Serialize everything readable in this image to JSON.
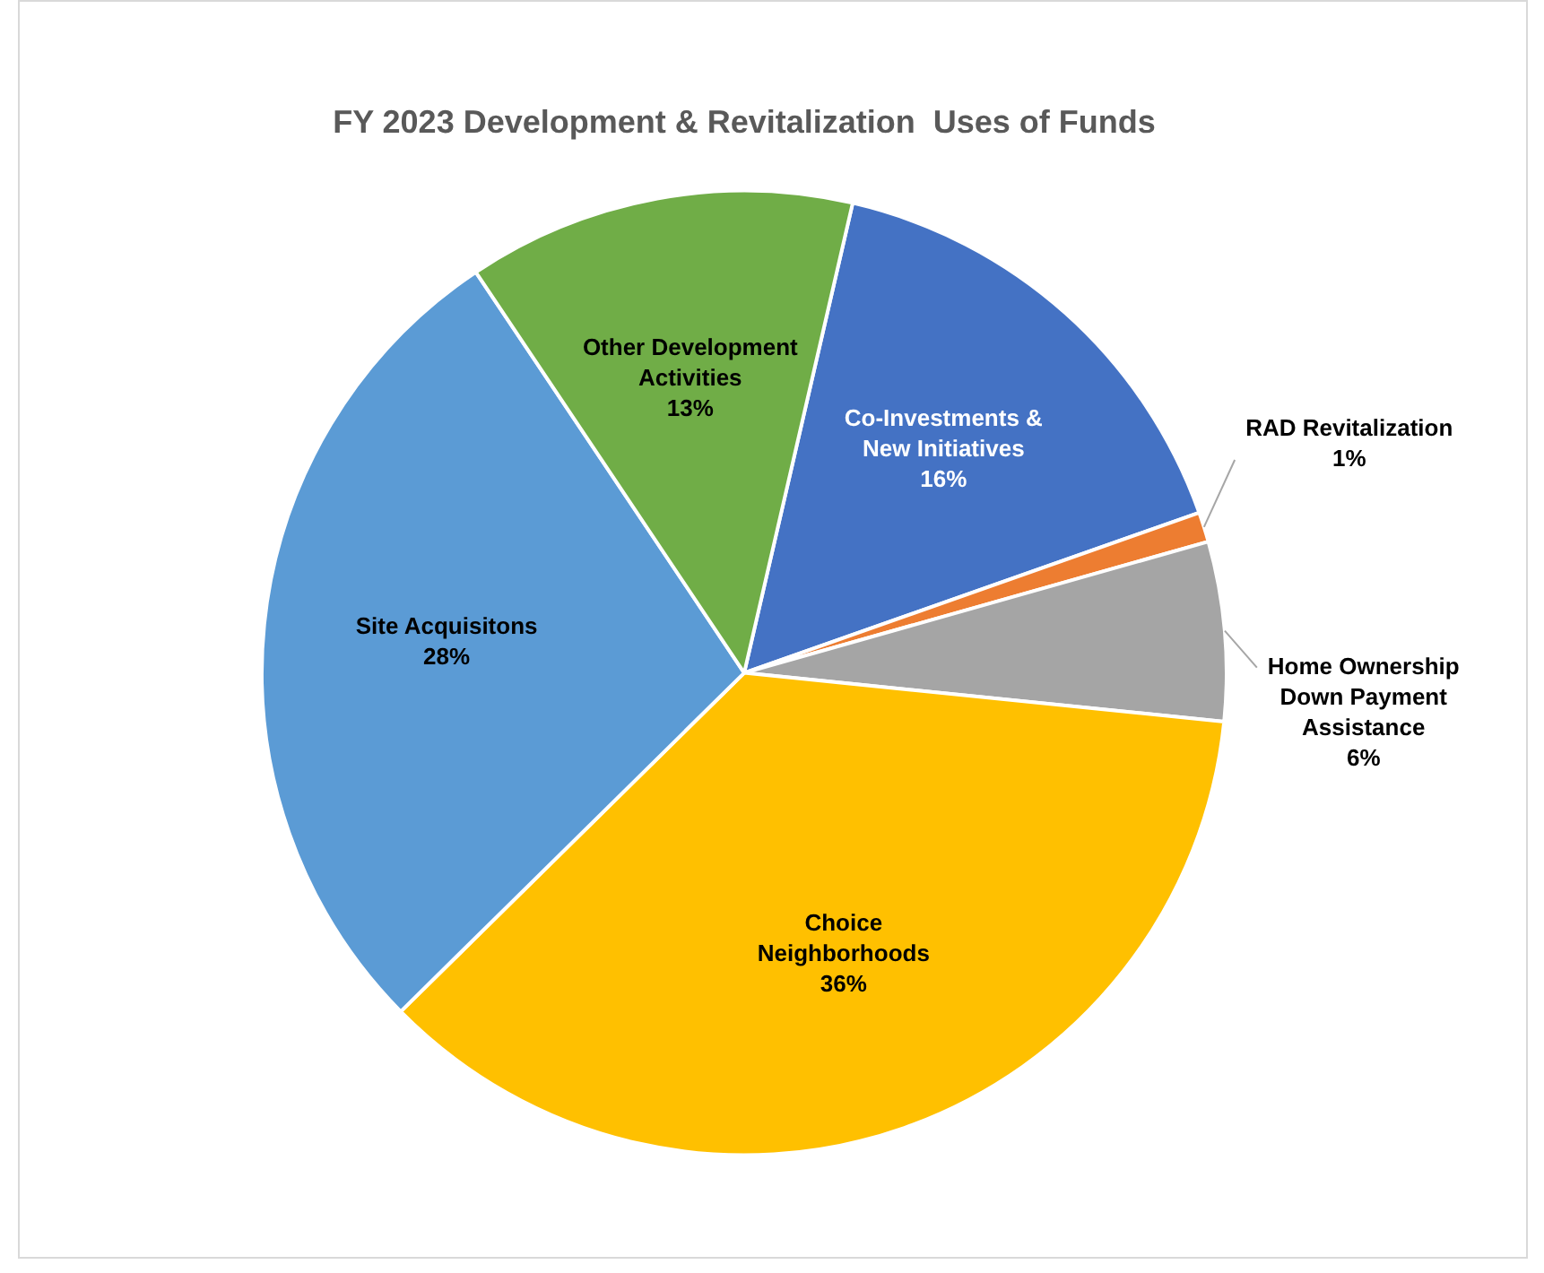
{
  "chart_data": {
    "type": "pie",
    "title": "FY 2023 Development & Revitalization  Uses of Funds",
    "categories": [
      "Co-Investments &\nNew Initiatives",
      "RAD Revitalization",
      "Home Ownership\nDown Payment\nAssistance",
      "Choice\nNeighborhoods",
      "Site Acquisitons",
      "Other Development\nActivities"
    ],
    "values": [
      16,
      1,
      6,
      36,
      28,
      13
    ],
    "colors": [
      "#4472c4",
      "#ed7d31",
      "#a5a5a5",
      "#ffc000",
      "#5b9bd5",
      "#70ad47"
    ],
    "value_labels": [
      "16%",
      "1%",
      "6%",
      "36%",
      "28%",
      "13%"
    ],
    "legend": false
  }
}
